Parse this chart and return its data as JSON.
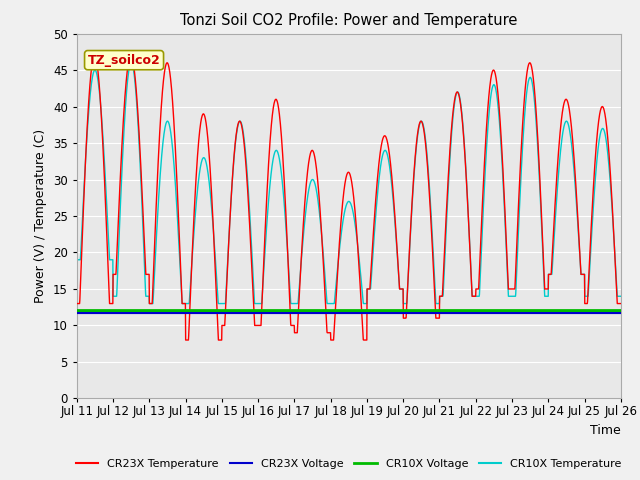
{
  "title": "Tonzi Soil CO2 Profile: Power and Temperature",
  "xlabel": "Time",
  "ylabel": "Power (V) / Temperature (C)",
  "ylim": [
    0,
    50
  ],
  "annotation": "TZ_soilco2",
  "fig_bg_color": "#f0f0f0",
  "plot_bg_color": "#e8e8e8",
  "plot_bg_color_lower": "#f8f8f8",
  "grid_color": "#ffffff",
  "cr23x_temp_color": "#ff0000",
  "cr23x_volt_color": "#0000cc",
  "cr10x_volt_color": "#00bb00",
  "cr10x_temp_color": "#00cccc",
  "cr23x_volt_val": 11.7,
  "cr10x_volt_val": 12.0,
  "x_tick_labels": [
    "Jul 11",
    "Jul 12",
    "Jul 13",
    "Jul 14",
    "Jul 15",
    "Jul 16",
    "Jul 17",
    "Jul 18",
    "Jul 19",
    "Jul 20",
    "Jul 21",
    "Jul 22",
    "Jul 23",
    "Jul 24",
    "Jul 25",
    "Jul 26"
  ],
  "n_days": 15,
  "cr23x_day_maxs": [
    47,
    47,
    46,
    39,
    38,
    41,
    34,
    31,
    36,
    38,
    42,
    45,
    46,
    41,
    40
  ],
  "cr23x_day_mins": [
    13,
    17,
    13,
    8,
    10,
    10,
    9,
    8,
    15,
    11,
    14,
    15,
    15,
    17,
    13
  ],
  "cr10x_day_maxs": [
    45,
    46,
    38,
    33,
    38,
    34,
    30,
    27,
    34,
    38,
    42,
    43,
    44,
    38,
    37
  ],
  "cr10x_day_mins": [
    19,
    14,
    13,
    13,
    13,
    13,
    13,
    13,
    15,
    13,
    14,
    14,
    14,
    17,
    14
  ]
}
